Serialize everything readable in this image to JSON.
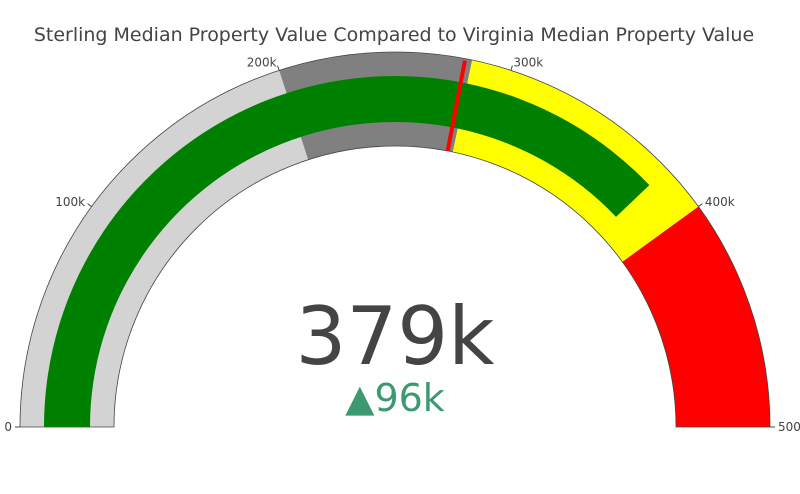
{
  "chart_data": {
    "type": "gauge",
    "title": "Sterling Median Property Value Compared to Virginia Median Property Value",
    "value": 379000,
    "value_label": "379k",
    "reference": 283000,
    "delta_label": "96k",
    "delta_direction": "increasing",
    "delta_symbol": "▲",
    "delta_color": "#3d9970",
    "range": [
      0,
      500000
    ],
    "ticks": [
      {
        "value": 0,
        "label": "0"
      },
      {
        "value": 100000,
        "label": "100k"
      },
      {
        "value": 200000,
        "label": "200k"
      },
      {
        "value": 300000,
        "label": "300k"
      },
      {
        "value": 400000,
        "label": "400k"
      },
      {
        "value": 500000,
        "label": "500k"
      }
    ],
    "steps": [
      {
        "range": [
          0,
          200000
        ],
        "color": "#d3d3d3"
      },
      {
        "range": [
          200000,
          283000
        ],
        "color": "#808080"
      },
      {
        "range": [
          283000,
          400000
        ],
        "color": "#ffff00"
      },
      {
        "range": [
          400000,
          500000
        ],
        "color": "#ff0000"
      }
    ],
    "bar_color": "#008000",
    "threshold": {
      "value": 280000,
      "color": "#ff0000"
    }
  }
}
